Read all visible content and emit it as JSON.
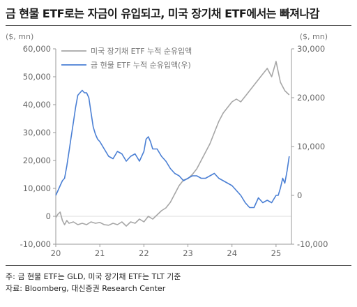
{
  "title": "금 현물 ETF로는 자금이 유입되고, 미국 장기채 ETF에서는 빠져나감",
  "notes": {
    "line1": "주: 금 현물 ETF는 GLD, 미국 장기채 ETF는 TLT 기준",
    "line2": "자료: Bloomberg, 대신증권 Research Center"
  },
  "chart_data": {
    "type": "line",
    "title": "금 현물 ETF로는 자금이 유입되고, 미국 장기채 ETF에서는 빠져나감",
    "left_unit": "($, mn)",
    "right_unit": "($, mn)",
    "x_ticks": [
      "20",
      "21",
      "22",
      "23",
      "24",
      "25"
    ],
    "x_range": [
      2020.0,
      2025.35
    ],
    "y_left": {
      "min": -10000,
      "max": 60000,
      "ticks": [
        "60,000",
        "50,000",
        "40,000",
        "30,000",
        "20,000",
        "10,000",
        "0",
        "-10,000"
      ]
    },
    "y_right": {
      "min": -10000,
      "max": 30000,
      "ticks": [
        "30,000",
        "20,000",
        "10,000",
        "0",
        "-10,000"
      ]
    },
    "grid": false,
    "legend_position": "top-left",
    "series": [
      {
        "name": "미국 장기채 ETF 누적 순유입액",
        "axis": "left",
        "color": "#a6a6a6",
        "x": [
          2020.0,
          2020.05,
          2020.1,
          2020.15,
          2020.2,
          2020.25,
          2020.3,
          2020.4,
          2020.5,
          2020.6,
          2020.7,
          2020.8,
          2020.9,
          2021.0,
          2021.1,
          2021.2,
          2021.3,
          2021.4,
          2021.5,
          2021.6,
          2021.7,
          2021.8,
          2021.9,
          2022.0,
          2022.1,
          2022.2,
          2022.3,
          2022.4,
          2022.5,
          2022.6,
          2022.7,
          2022.8,
          2022.9,
          2023.0,
          2023.1,
          2023.2,
          2023.3,
          2023.4,
          2023.5,
          2023.6,
          2023.7,
          2023.8,
          2023.9,
          2024.0,
          2024.1,
          2024.2,
          2024.3,
          2024.4,
          2024.5,
          2024.6,
          2024.7,
          2024.8,
          2024.9,
          2025.0,
          2025.1,
          2025.2,
          2025.3
        ],
        "values": [
          -500,
          800,
          1500,
          -1500,
          -3000,
          -1500,
          -2500,
          -2000,
          -3000,
          -2500,
          -3000,
          -2000,
          -2500,
          -2200,
          -3000,
          -3200,
          -2500,
          -3000,
          -2000,
          -3500,
          -2000,
          -2500,
          -1000,
          -2000,
          0,
          -1000,
          500,
          2000,
          3000,
          5000,
          8000,
          11000,
          13000,
          13500,
          15000,
          17000,
          20000,
          23000,
          26000,
          30000,
          34000,
          37000,
          39000,
          41000,
          42000,
          41000,
          43000,
          45000,
          47000,
          49000,
          51000,
          53000,
          50000,
          55500,
          48000,
          45000,
          43500
        ]
      },
      {
        "name": "금 현물 ETF 누적 순유입액(우)",
        "axis": "right",
        "color": "#4a7fd4",
        "x": [
          2020.0,
          2020.05,
          2020.1,
          2020.15,
          2020.2,
          2020.25,
          2020.3,
          2020.35,
          2020.4,
          2020.45,
          2020.5,
          2020.55,
          2020.6,
          2020.65,
          2020.7,
          2020.75,
          2020.8,
          2020.85,
          2020.9,
          2020.95,
          2021.0,
          2021.1,
          2021.2,
          2021.3,
          2021.4,
          2021.5,
          2021.6,
          2021.7,
          2021.8,
          2021.9,
          2022.0,
          2022.05,
          2022.1,
          2022.15,
          2022.2,
          2022.3,
          2022.4,
          2022.5,
          2022.6,
          2022.7,
          2022.8,
          2022.9,
          2023.0,
          2023.1,
          2023.2,
          2023.3,
          2023.4,
          2023.5,
          2023.6,
          2023.7,
          2023.8,
          2023.9,
          2024.0,
          2024.1,
          2024.2,
          2024.3,
          2024.4,
          2024.5,
          2024.6,
          2024.7,
          2024.8,
          2024.9,
          2025.0,
          2025.05,
          2025.1,
          2025.15,
          2025.2,
          2025.25,
          2025.3
        ],
        "values": [
          0,
          1000,
          2000,
          3000,
          3500,
          6000,
          9000,
          12000,
          15000,
          18000,
          20500,
          21000,
          21500,
          21000,
          21000,
          20000,
          17000,
          14000,
          12500,
          11500,
          11000,
          9500,
          8000,
          7500,
          9000,
          8500,
          7000,
          8000,
          8500,
          7000,
          9000,
          11500,
          12000,
          11000,
          9500,
          9500,
          8000,
          7000,
          5500,
          4500,
          4000,
          3000,
          3500,
          4000,
          4000,
          3500,
          3500,
          4000,
          4500,
          3500,
          3000,
          2500,
          2000,
          1000,
          0,
          -1500,
          -2500,
          -2500,
          -500,
          -1500,
          -1000,
          -1500,
          0,
          0.5,
          1500,
          3500,
          2500,
          5000,
          8000
        ]
      }
    ]
  }
}
